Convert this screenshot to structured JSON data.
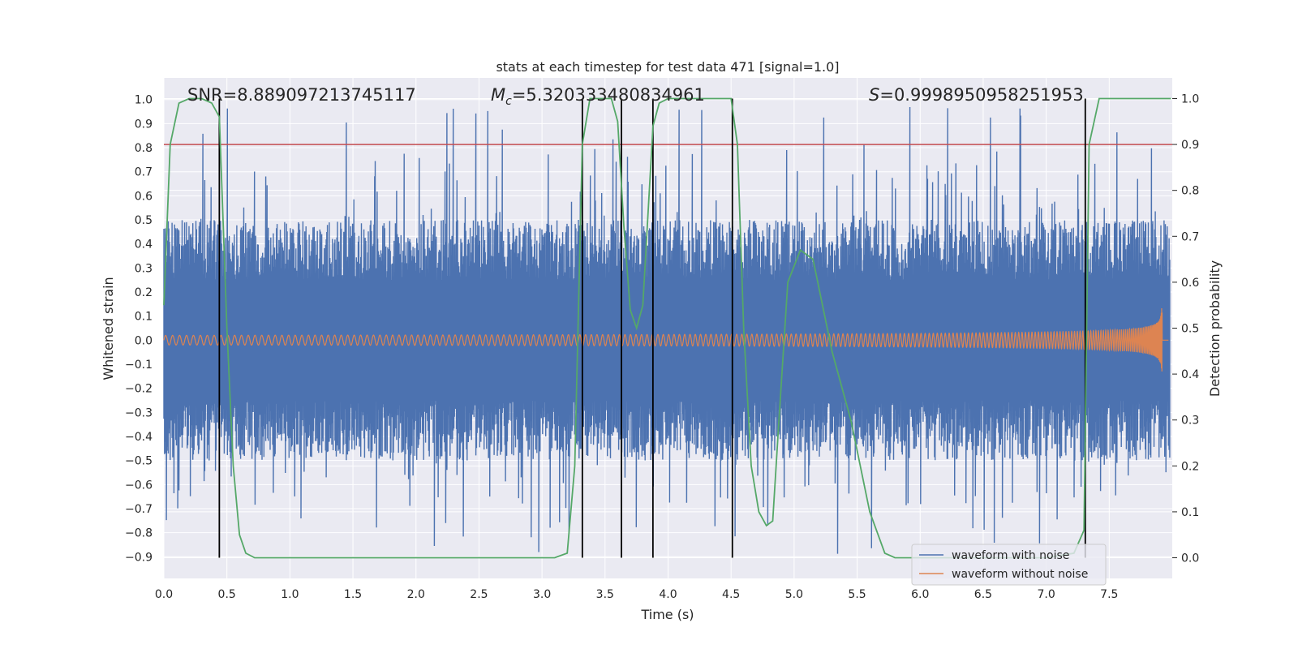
{
  "chart_data": {
    "type": "line",
    "title": "stats at each timestep for test data 471 [signal=1.0]",
    "xlabel": "Time (s)",
    "ylabel": "Whitened strain",
    "y2label": "Detection probability",
    "xlim": [
      0.0,
      8.0
    ],
    "ylim": [
      -0.99,
      1.09
    ],
    "y2lim": [
      -0.045,
      1.045
    ],
    "x_ticks": [
      "0.0",
      "0.5",
      "1.0",
      "1.5",
      "2.0",
      "2.5",
      "3.0",
      "3.5",
      "4.0",
      "4.5",
      "5.0",
      "5.5",
      "6.0",
      "6.5",
      "7.0",
      "7.5"
    ],
    "y_ticks": [
      "1.0",
      "0.9",
      "0.8",
      "0.7",
      "0.6",
      "0.5",
      "0.4",
      "0.3",
      "0.2",
      "0.1",
      "0.0",
      "−0.1",
      "−0.2",
      "−0.3",
      "−0.4",
      "−0.5",
      "−0.6",
      "−0.7",
      "−0.8",
      "−0.9"
    ],
    "y2_ticks": [
      "1.0",
      "0.9",
      "0.8",
      "0.7",
      "0.6",
      "0.5",
      "0.4",
      "0.3",
      "0.2",
      "0.1",
      "0.0"
    ],
    "annotations": {
      "snr": "SNR=8.889097213745117",
      "mc_symbol": "M",
      "mc_sub": "c",
      "mc_value": "=5.320333480834961",
      "s_symbol": "S",
      "s_value": "=0.9998950958251953"
    },
    "legend": {
      "position": "lower-right",
      "entries": [
        {
          "label": "waveform with noise",
          "color": "#4c72b0"
        },
        {
          "label": "waveform without noise",
          "color": "#dd8452"
        }
      ]
    },
    "threshold_line": {
      "axis": "y2",
      "value": 0.9,
      "color": "#c44e52"
    },
    "vertical_lines_x": [
      0.44,
      3.32,
      3.63,
      3.88,
      4.51,
      7.31
    ],
    "series": [
      {
        "name": "waveform with noise",
        "axis": "y",
        "color": "#4c72b0",
        "envelope": "noisy",
        "peak_min": -0.9,
        "peak_max": 0.98
      },
      {
        "name": "waveform without noise",
        "axis": "y",
        "color": "#dd8452",
        "envelope": "chirp",
        "t_merge": 7.92
      },
      {
        "name": "detection probability",
        "axis": "y2",
        "color": "#55a868",
        "x": [
          0.0,
          0.05,
          0.12,
          0.2,
          0.3,
          0.38,
          0.44,
          0.5,
          0.55,
          0.6,
          0.65,
          0.72,
          0.8,
          1.0,
          2.0,
          3.0,
          3.1,
          3.2,
          3.26,
          3.32,
          3.38,
          3.45,
          3.55,
          3.6,
          3.65,
          3.7,
          3.75,
          3.8,
          3.88,
          3.93,
          4.0,
          4.1,
          4.3,
          4.5,
          4.55,
          4.6,
          4.66,
          4.72,
          4.78,
          4.83,
          4.88,
          4.95,
          5.05,
          5.15,
          5.3,
          5.45,
          5.6,
          5.72,
          5.8,
          6.0,
          7.0,
          7.22,
          7.3,
          7.34,
          7.42,
          7.5,
          7.9,
          7.99
        ],
        "y": [
          0.55,
          0.9,
          0.99,
          1.0,
          1.0,
          0.99,
          0.96,
          0.5,
          0.2,
          0.05,
          0.01,
          0.0,
          0.0,
          0.0,
          0.0,
          0.0,
          0.0,
          0.01,
          0.2,
          0.9,
          1.0,
          1.0,
          1.0,
          0.95,
          0.72,
          0.54,
          0.5,
          0.55,
          0.94,
          0.99,
          1.0,
          1.0,
          1.0,
          1.0,
          0.9,
          0.5,
          0.2,
          0.1,
          0.07,
          0.08,
          0.3,
          0.6,
          0.67,
          0.65,
          0.45,
          0.3,
          0.1,
          0.01,
          0.0,
          0.0,
          0.0,
          0.01,
          0.06,
          0.9,
          1.0,
          1.0,
          1.0,
          1.0
        ]
      }
    ]
  }
}
